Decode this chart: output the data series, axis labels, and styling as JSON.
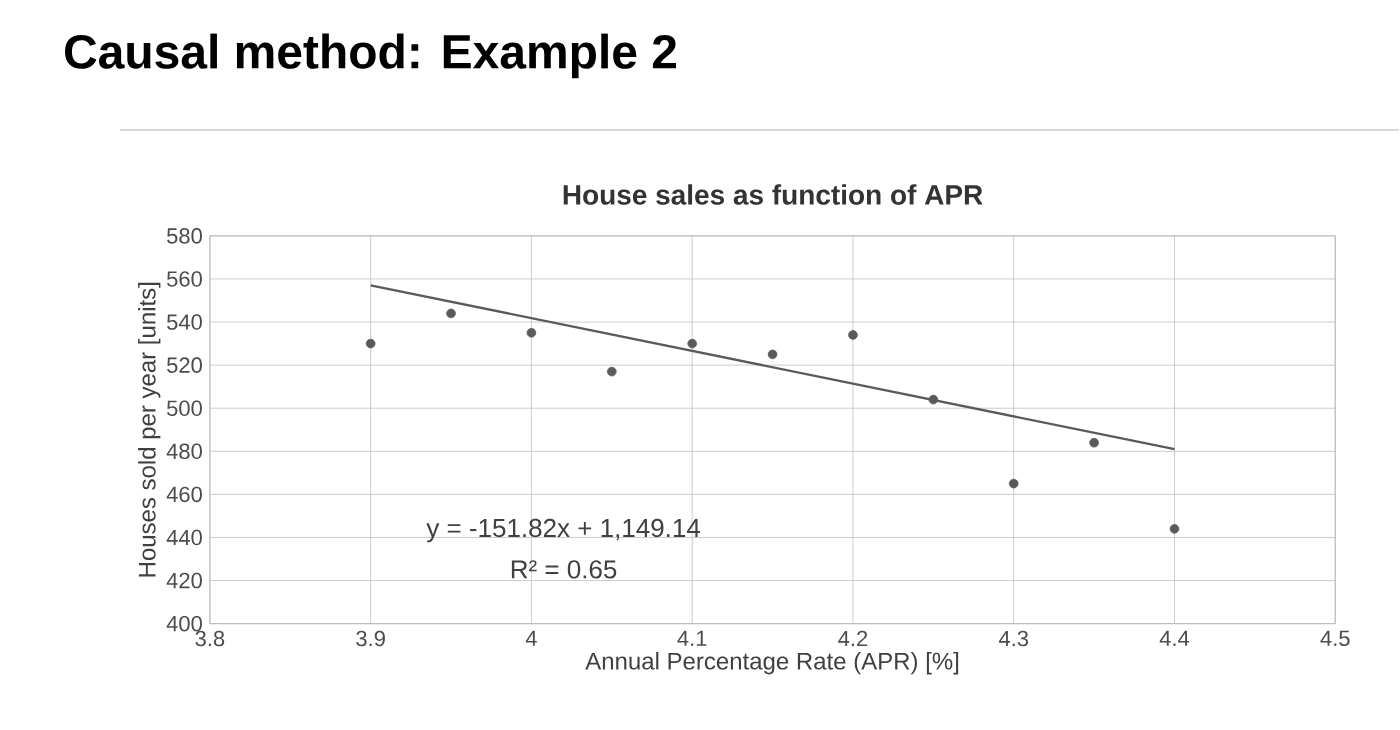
{
  "chart_data": {
    "type": "scatter",
    "title": "Causal method: Example 2",
    "subtitle": "House sales as function of APR",
    "xlabel": "Annual Percentage Rate (APR) [%]",
    "ylabel": "Houses sold per year [units]",
    "series": [
      {
        "color": "#5a5a5a",
        "marker": "circle",
        "x": [
          3.9,
          3.95,
          4.0,
          4.05,
          4.1,
          4.15,
          4.2,
          4.25,
          4.3,
          4.35,
          4.4
        ],
        "values": [
          530,
          544,
          535,
          517,
          530,
          525,
          534,
          504,
          465,
          484,
          444
        ]
      },
      {
        "type": "line",
        "marker": "none",
        "color": "#5a5a5a",
        "x": [
          3.9,
          4.4
        ],
        "values": [
          557,
          481
        ]
      }
    ],
    "xlim": [
      3.8,
      4.5
    ],
    "xticks": [
      3.8,
      3.9,
      4,
      4.1,
      4.2,
      4.3,
      4.4,
      4.5
    ],
    "ylim": [
      400,
      580
    ],
    "yticks": [
      400,
      420,
      440,
      460,
      480,
      500,
      520,
      540,
      560,
      580
    ],
    "grid": true,
    "annotations": [
      "y = -151.82x + 1,149.14",
      "R² = 0.65"
    ]
  }
}
